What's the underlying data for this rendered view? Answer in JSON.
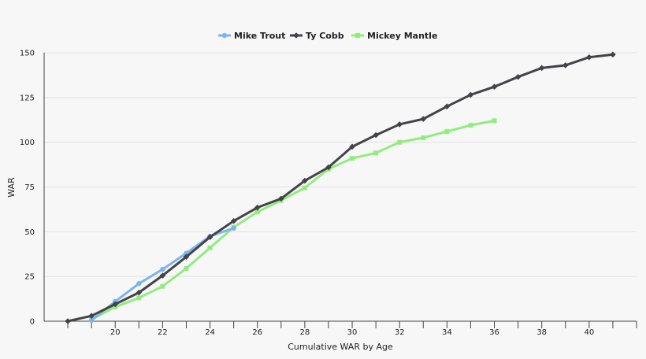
{
  "chart_data": {
    "type": "line",
    "title": "",
    "xlabel": "Cumulative WAR by Age",
    "ylabel": "WAR",
    "xlim": [
      17,
      42
    ],
    "ylim": [
      0,
      150
    ],
    "x_ticks": [
      20,
      22,
      24,
      26,
      28,
      30,
      32,
      34,
      36,
      38,
      40
    ],
    "y_ticks": [
      0,
      25,
      50,
      75,
      100,
      125,
      150
    ],
    "grid": "horizontal",
    "legend_position": "top-center",
    "series": [
      {
        "name": "Mike Trout",
        "color": "#7cb5ec",
        "marker": "circle",
        "x": [
          19,
          20,
          21,
          22,
          23,
          24,
          25
        ],
        "y": [
          0.5,
          11,
          21,
          29,
          38,
          47.5,
          52
        ]
      },
      {
        "name": "Ty Cobb",
        "color": "#434348",
        "marker": "diamond",
        "x": [
          18,
          19,
          20,
          21,
          22,
          23,
          24,
          25,
          26,
          27,
          28,
          29,
          30,
          31,
          32,
          33,
          34,
          35,
          36,
          37,
          38,
          39,
          40,
          41
        ],
        "y": [
          0,
          3,
          9.5,
          16,
          25.5,
          36,
          47,
          56,
          63.5,
          68.5,
          78.5,
          86,
          97.5,
          104,
          110,
          113,
          120,
          126.5,
          131,
          136.5,
          141.5,
          143,
          147.5,
          149
        ]
      },
      {
        "name": "Mickey Mantle",
        "color": "#90ed7d",
        "marker": "square",
        "x": [
          19,
          20,
          21,
          22,
          23,
          24,
          25,
          26,
          27,
          28,
          29,
          30,
          31,
          32,
          33,
          34,
          35,
          36
        ],
        "y": [
          1,
          8,
          13,
          19.5,
          29.5,
          41,
          52.5,
          61,
          67.5,
          74.5,
          85,
          91,
          94,
          100,
          102.5,
          106,
          109.5,
          112
        ]
      }
    ]
  }
}
